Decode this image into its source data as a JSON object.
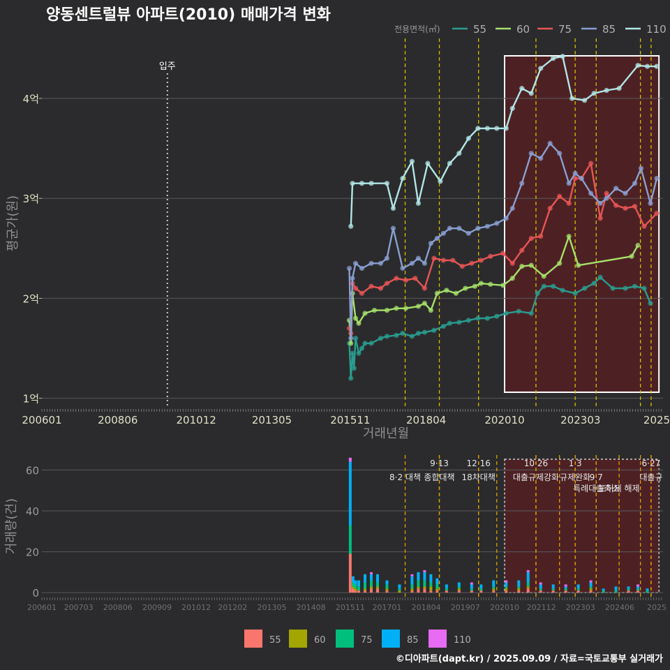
{
  "chart_data": [
    {
      "type": "line",
      "title": "양동센트럴뷰 아파트(2010) 매매가격 변화",
      "xlabel": "거래년월",
      "ylabel": "평균가(원)",
      "x_tick_labels": [
        "200601",
        "200806",
        "201012",
        "201305",
        "201511",
        "201804",
        "202010",
        "202303",
        "2025"
      ],
      "x_tick_positions": [
        2006.0,
        2008.42,
        2010.92,
        2013.33,
        2015.83,
        2018.25,
        2020.75,
        2023.17,
        2025.6
      ],
      "y_ticks": [
        1,
        2,
        3,
        4
      ],
      "y_tick_labels": [
        "1억",
        "2억",
        "3억",
        "4억"
      ],
      "xlim": [
        2006.0,
        2025.8
      ],
      "ylim": [
        0.9,
        4.6
      ],
      "movein": {
        "x": 2010.0,
        "label": "입주"
      },
      "policy_lines": [
        2017.58,
        2018.67,
        2019.92,
        2021.75,
        2023.0,
        2023.67,
        2025.08,
        2025.42
      ],
      "highlight_range": [
        2020.75,
        2025.67
      ],
      "legend_title": "전용면적(㎡)",
      "series": [
        {
          "name": "55",
          "color": "#2a9d8f",
          "x": [
            2015.8,
            2015.85,
            2015.9,
            2015.95,
            2016.0,
            2016.1,
            2016.2,
            2016.3,
            2016.5,
            2016.8,
            2017.0,
            2017.3,
            2017.5,
            2017.8,
            2018.0,
            2018.2,
            2018.5,
            2018.8,
            2019.0,
            2019.3,
            2019.6,
            2019.9,
            2020.2,
            2020.5,
            2020.8,
            2021.2,
            2021.6,
            2021.8,
            2022.0,
            2022.3,
            2022.6,
            2023.0,
            2023.3,
            2023.6,
            2023.8,
            2024.2,
            2024.6,
            2024.9,
            2025.2,
            2025.4
          ],
          "y": [
            1.55,
            1.2,
            1.45,
            1.3,
            1.6,
            1.45,
            1.5,
            1.55,
            1.55,
            1.6,
            1.62,
            1.63,
            1.65,
            1.62,
            1.65,
            1.66,
            1.68,
            1.72,
            1.75,
            1.76,
            1.78,
            1.8,
            1.8,
            1.82,
            1.85,
            1.87,
            1.85,
            2.05,
            2.12,
            2.12,
            2.08,
            2.05,
            2.1,
            2.15,
            2.21,
            2.1,
            2.1,
            2.12,
            2.1,
            1.95
          ]
        },
        {
          "name": "60",
          "color": "#a6e06a",
          "x": [
            2015.8,
            2015.85,
            2015.9,
            2016.0,
            2016.1,
            2016.3,
            2016.6,
            2017.0,
            2017.3,
            2017.6,
            2018.0,
            2018.2,
            2018.4,
            2018.6,
            2018.9,
            2019.2,
            2019.5,
            2019.8,
            2020.0,
            2020.3,
            2020.7,
            2021.0,
            2021.3,
            2021.6,
            2022.0,
            2022.5,
            2022.8,
            2023.1,
            2024.8,
            2025.0
          ],
          "y": [
            1.78,
            1.55,
            2.05,
            1.8,
            1.75,
            1.85,
            1.88,
            1.88,
            1.9,
            1.9,
            1.92,
            1.95,
            1.88,
            2.05,
            2.08,
            2.05,
            2.1,
            2.12,
            2.15,
            2.14,
            2.13,
            2.2,
            2.32,
            2.33,
            2.22,
            2.35,
            2.62,
            2.33,
            2.42,
            2.53
          ]
        },
        {
          "name": "75",
          "color": "#e85555",
          "x": [
            2015.8,
            2015.85,
            2015.9,
            2016.0,
            2016.2,
            2016.5,
            2016.8,
            2017.0,
            2017.3,
            2017.6,
            2017.9,
            2018.2,
            2018.5,
            2018.8,
            2019.1,
            2019.4,
            2019.7,
            2020.0,
            2020.3,
            2020.7,
            2021.0,
            2021.3,
            2021.6,
            2021.9,
            2022.2,
            2022.5,
            2022.8,
            2023.0,
            2023.2,
            2023.5,
            2023.8,
            2024.0,
            2024.3,
            2024.6,
            2024.9,
            2025.2,
            2025.6
          ],
          "y": [
            1.7,
            1.65,
            2.15,
            2.1,
            2.05,
            2.12,
            2.1,
            2.15,
            2.2,
            2.18,
            2.2,
            2.1,
            2.4,
            2.38,
            2.38,
            2.32,
            2.35,
            2.38,
            2.42,
            2.45,
            2.35,
            2.48,
            2.6,
            2.62,
            2.9,
            3.02,
            2.95,
            3.2,
            3.2,
            3.35,
            2.8,
            3.05,
            2.93,
            2.9,
            2.92,
            2.72,
            2.85
          ]
        },
        {
          "name": "85",
          "color": "#8a9fd1",
          "x": [
            2015.8,
            2015.85,
            2015.9,
            2016.0,
            2016.2,
            2016.5,
            2016.8,
            2017.0,
            2017.2,
            2017.5,
            2017.8,
            2018.0,
            2018.2,
            2018.4,
            2018.6,
            2018.8,
            2019.0,
            2019.3,
            2019.6,
            2019.9,
            2020.2,
            2020.5,
            2020.8,
            2021.0,
            2021.3,
            2021.6,
            2021.9,
            2022.2,
            2022.5,
            2022.8,
            2023.0,
            2023.2,
            2023.5,
            2023.8,
            2024.0,
            2024.3,
            2024.6,
            2024.9,
            2025.1,
            2025.4,
            2025.6
          ],
          "y": [
            2.3,
            1.6,
            2.2,
            2.35,
            2.3,
            2.35,
            2.35,
            2.4,
            2.7,
            2.3,
            2.35,
            2.4,
            2.35,
            2.55,
            2.6,
            2.65,
            2.7,
            2.7,
            2.65,
            2.7,
            2.72,
            2.75,
            2.8,
            2.9,
            3.15,
            3.45,
            3.4,
            3.55,
            3.45,
            3.15,
            3.25,
            3.2,
            3.05,
            2.95,
            3.0,
            3.1,
            3.05,
            3.15,
            3.3,
            2.95,
            3.2
          ]
        },
        {
          "name": "110",
          "color": "#b2e6e6",
          "x": [
            2015.85,
            2015.9,
            2016.2,
            2016.5,
            2017.0,
            2017.2,
            2017.5,
            2017.8,
            2018.0,
            2018.3,
            2018.7,
            2019.0,
            2019.3,
            2019.6,
            2019.9,
            2020.2,
            2020.5,
            2020.8,
            2021.0,
            2021.3,
            2021.6,
            2021.9,
            2022.3,
            2022.6,
            2022.9,
            2023.3,
            2023.6,
            2024.0,
            2024.4,
            2025.0,
            2025.3,
            2025.6
          ],
          "y": [
            2.72,
            3.15,
            3.15,
            3.15,
            3.15,
            2.9,
            3.2,
            3.37,
            2.95,
            3.35,
            3.17,
            3.35,
            3.45,
            3.6,
            3.7,
            3.7,
            3.7,
            3.7,
            3.9,
            4.1,
            4.05,
            4.3,
            4.4,
            4.42,
            4.0,
            3.98,
            4.05,
            4.08,
            4.1,
            4.33,
            4.32,
            4.32
          ]
        }
      ]
    },
    {
      "type": "bar",
      "ylabel": "거래량(건)",
      "x_tick_labels": [
        "200601",
        "200703",
        "200806",
        "200909",
        "201012",
        "201202",
        "201305",
        "201408",
        "201511",
        "201701",
        "201804",
        "201907",
        "202010",
        "202112",
        "202303",
        "202406",
        "2025"
      ],
      "x_tick_positions": [
        2006.0,
        2007.17,
        2008.42,
        2009.67,
        2010.92,
        2012.08,
        2013.33,
        2014.58,
        2015.83,
        2017.0,
        2018.25,
        2019.5,
        2020.75,
        2021.92,
        2023.17,
        2024.42,
        2025.6
      ],
      "y_ticks": [
        0,
        20,
        40,
        60
      ],
      "ylim": [
        -2,
        68
      ],
      "xlim": [
        2006.0,
        2025.8
      ],
      "highlight_range": [
        2020.75,
        2025.67
      ],
      "categories_legend": [
        {
          "name": "55",
          "color": "#f8766d"
        },
        {
          "name": "60",
          "color": "#a3a500"
        },
        {
          "name": "75",
          "color": "#00bf7d"
        },
        {
          "name": "85",
          "color": "#00b0f6"
        },
        {
          "name": "110",
          "color": "#e76bf3"
        }
      ],
      "bars": [
        {
          "x": 2015.83,
          "v": [
            19,
            0,
            14,
            31,
            2
          ]
        },
        {
          "x": 2015.92,
          "v": [
            2,
            1,
            2,
            3,
            0
          ]
        },
        {
          "x": 2016.0,
          "v": [
            1,
            1,
            2,
            2,
            0
          ]
        },
        {
          "x": 2016.1,
          "v": [
            1,
            0,
            2,
            3,
            0
          ]
        },
        {
          "x": 2016.3,
          "v": [
            1,
            1,
            3,
            4,
            0
          ]
        },
        {
          "x": 2016.5,
          "v": [
            2,
            1,
            3,
            3,
            1
          ]
        },
        {
          "x": 2016.7,
          "v": [
            2,
            1,
            2,
            4,
            0
          ]
        },
        {
          "x": 2017.0,
          "v": [
            1,
            1,
            2,
            2,
            0
          ]
        },
        {
          "x": 2017.4,
          "v": [
            0,
            1,
            1,
            2,
            0
          ]
        },
        {
          "x": 2017.8,
          "v": [
            1,
            1,
            2,
            4,
            1
          ]
        },
        {
          "x": 2018.0,
          "v": [
            2,
            1,
            3,
            4,
            0
          ]
        },
        {
          "x": 2018.2,
          "v": [
            2,
            1,
            3,
            4,
            1
          ]
        },
        {
          "x": 2018.4,
          "v": [
            1,
            2,
            2,
            4,
            0
          ]
        },
        {
          "x": 2018.6,
          "v": [
            1,
            1,
            2,
            3,
            0
          ]
        },
        {
          "x": 2018.9,
          "v": [
            1,
            0,
            1,
            2,
            0
          ]
        },
        {
          "x": 2019.3,
          "v": [
            1,
            1,
            1,
            2,
            0
          ]
        },
        {
          "x": 2019.7,
          "v": [
            1,
            0,
            1,
            2,
            1
          ]
        },
        {
          "x": 2020.0,
          "v": [
            1,
            0,
            1,
            2,
            0
          ]
        },
        {
          "x": 2020.4,
          "v": [
            1,
            1,
            1,
            3,
            0
          ]
        },
        {
          "x": 2020.8,
          "v": [
            1,
            1,
            1,
            2,
            1
          ]
        },
        {
          "x": 2021.2,
          "v": [
            1,
            1,
            1,
            3,
            0
          ]
        },
        {
          "x": 2021.5,
          "v": [
            2,
            1,
            2,
            5,
            1
          ]
        },
        {
          "x": 2021.9,
          "v": [
            1,
            0,
            1,
            2,
            1
          ]
        },
        {
          "x": 2022.3,
          "v": [
            1,
            0,
            1,
            2,
            0
          ]
        },
        {
          "x": 2022.7,
          "v": [
            1,
            0,
            1,
            1,
            1
          ]
        },
        {
          "x": 2023.1,
          "v": [
            1,
            0,
            1,
            2,
            0
          ]
        },
        {
          "x": 2023.5,
          "v": [
            1,
            1,
            1,
            2,
            1
          ]
        },
        {
          "x": 2023.9,
          "v": [
            0,
            0,
            1,
            1,
            0
          ]
        },
        {
          "x": 2024.3,
          "v": [
            0,
            0,
            1,
            2,
            0
          ]
        },
        {
          "x": 2024.7,
          "v": [
            1,
            0,
            1,
            1,
            0
          ]
        },
        {
          "x": 2025.0,
          "v": [
            1,
            0,
            1,
            1,
            1
          ]
        },
        {
          "x": 2025.3,
          "v": [
            0,
            0,
            1,
            1,
            0
          ]
        }
      ],
      "policy_lines": [
        {
          "x": 2017.58,
          "label": "8·2 대책",
          "row": 1
        },
        {
          "x": 2018.67,
          "label": "9·13",
          "row": 0
        },
        {
          "x": 2018.67,
          "label": "종합대책",
          "row": 1
        },
        {
          "x": 2019.92,
          "label": "12·16",
          "row": 0
        },
        {
          "x": 2019.92,
          "label": "18차대책",
          "row": 1
        },
        {
          "x": 2020.5,
          "label": "",
          "row": 0
        },
        {
          "x": 2021.75,
          "label": "10·26",
          "row": 0
        },
        {
          "x": 2021.75,
          "label": "대출규제강화",
          "row": 1
        },
        {
          "x": 2022.5,
          "label": "",
          "row": 0
        },
        {
          "x": 2023.0,
          "label": "1·3",
          "row": 0
        },
        {
          "x": 2023.0,
          "label": "규제완화",
          "row": 1
        },
        {
          "x": 2023.67,
          "label": "9·7",
          "row": 1
        },
        {
          "x": 2023.67,
          "label": "특례대출축소",
          "row": 2
        },
        {
          "x": 2024.4,
          "label": "토허제 해제",
          "row": 2
        },
        {
          "x": 2025.08,
          "label": "",
          "row": 0
        },
        {
          "x": 2025.42,
          "label": "6·27",
          "row": 0
        },
        {
          "x": 2025.42,
          "label": "대출규",
          "row": 1
        }
      ]
    }
  ],
  "footer": {
    "credit": "©디아파트(dapt.kr) / 2025.09.09 / 자료=국토교통부 실거래가"
  }
}
